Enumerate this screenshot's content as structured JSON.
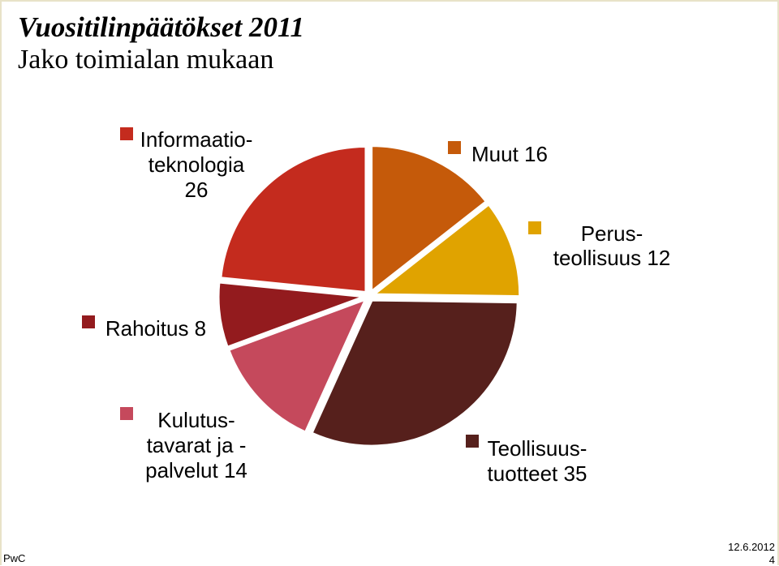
{
  "header": {
    "title": "Vuositilinpäätökset 2011",
    "subtitle": "Jako toimialan mukaan"
  },
  "chart_data": {
    "type": "pie",
    "title": "Vuositilinpäätökset 2011",
    "subtitle": "Jako toimialan mukaan",
    "slices": [
      {
        "label_lines": [
          "Muut 16"
        ],
        "value": 16,
        "color": "#c55a0a"
      },
      {
        "label_lines": [
          "Perus-",
          "teollisuus 12"
        ],
        "value": 12,
        "color": "#e0a300"
      },
      {
        "label_lines": [
          "Teollisuus-",
          "tuotteet 35"
        ],
        "value": 35,
        "color": "#56201c"
      },
      {
        "label_lines": [
          "Kulutus-",
          "tavarat ja -",
          "palvelut 14"
        ],
        "value": 14,
        "color": "#c5495c"
      },
      {
        "label_lines": [
          "Rahoitus 8"
        ],
        "value": 8,
        "color": "#931b1e"
      },
      {
        "label_lines": [
          "Informaatio-",
          "teknologia",
          "26"
        ],
        "value": 26,
        "color": "#c42b1e"
      }
    ],
    "legend_placement": "labels around pie"
  },
  "footer": {
    "brand": "PwC",
    "date": "12.6.2012",
    "page": "4"
  }
}
